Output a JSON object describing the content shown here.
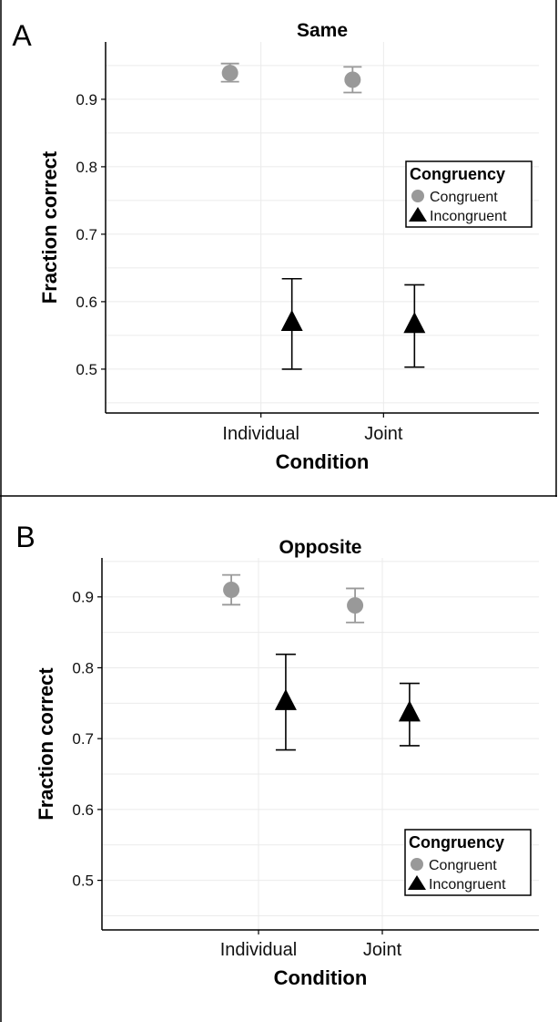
{
  "chart_data": [
    {
      "panel_label": "A",
      "title": "Same",
      "type": "scatter",
      "xlabel": "Condition",
      "ylabel": "Fraction correct",
      "categories": [
        "Individual",
        "Joint"
      ],
      "ylim": [
        0.435,
        0.985
      ],
      "yticks": [
        0.5,
        0.6,
        0.7,
        0.8,
        0.9
      ],
      "grid": true,
      "legend": {
        "title": "Congruency",
        "placement": "right",
        "entries": [
          "Congruent",
          "Incongruent"
        ]
      },
      "series": [
        {
          "name": "Congruent",
          "marker": "circle",
          "color": "#999999",
          "values": [
            0.939,
            0.929
          ],
          "err_low": [
            0.926,
            0.91
          ],
          "err_high": [
            0.953,
            0.948
          ]
        },
        {
          "name": "Incongruent",
          "marker": "triangle",
          "color": "#000000",
          "values": [
            0.57,
            0.567
          ],
          "err_low": [
            0.5,
            0.503
          ],
          "err_high": [
            0.634,
            0.625
          ]
        }
      ]
    },
    {
      "panel_label": "B",
      "title": "Opposite",
      "type": "scatter",
      "xlabel": "Condition",
      "ylabel": "Fraction correct",
      "categories": [
        "Individual",
        "Joint"
      ],
      "ylim": [
        0.43,
        0.955
      ],
      "yticks": [
        0.5,
        0.6,
        0.7,
        0.8,
        0.9
      ],
      "grid": true,
      "legend": {
        "title": "Congruency",
        "placement": "bottom-right",
        "entries": [
          "Congruent",
          "Incongruent"
        ]
      },
      "series": [
        {
          "name": "Congruent",
          "marker": "circle",
          "color": "#999999",
          "values": [
            0.91,
            0.888
          ],
          "err_low": [
            0.889,
            0.864
          ],
          "err_high": [
            0.931,
            0.912
          ]
        },
        {
          "name": "Incongruent",
          "marker": "triangle",
          "color": "#000000",
          "values": [
            0.753,
            0.737
          ],
          "err_low": [
            0.684,
            0.69
          ],
          "err_high": [
            0.819,
            0.778
          ]
        }
      ]
    }
  ]
}
